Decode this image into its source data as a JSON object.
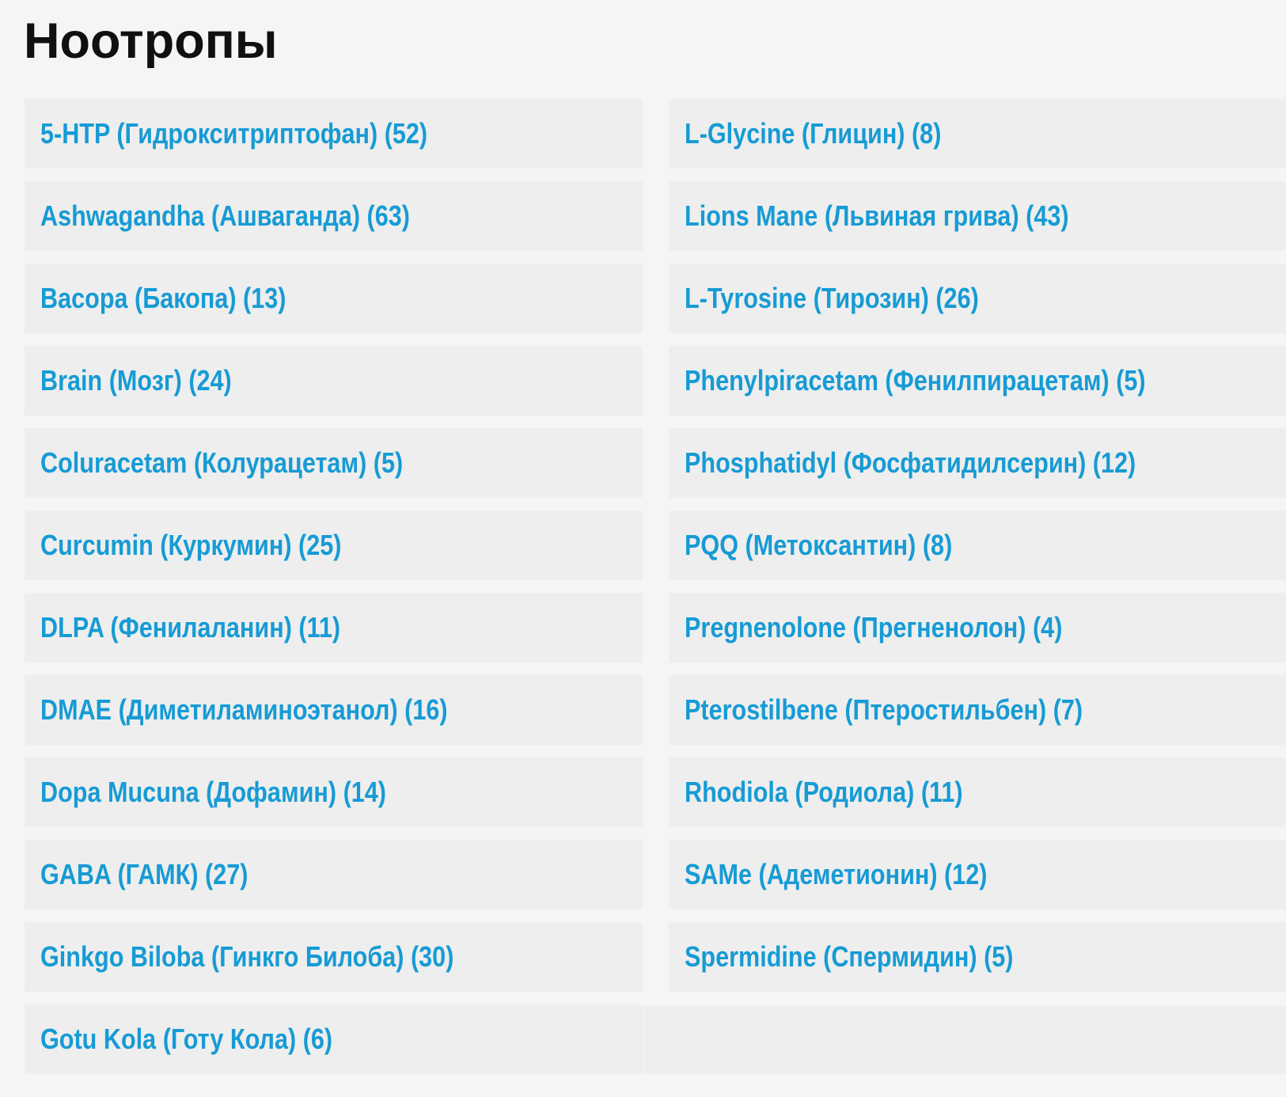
{
  "page": {
    "title": "Ноотропы"
  },
  "colors": {
    "page_bg": "#f5f5f6",
    "cell_bg": "#eeeeee",
    "link": "#169bd5",
    "title_text": "#101010"
  },
  "categories": {
    "left": [
      {
        "label": "5-HTP (Гидрокситриптофан) (52)",
        "count": 52
      },
      {
        "label": "Ashwagandha (Ашваганда) (63)",
        "count": 63
      },
      {
        "label": "Bacopa (Бакопа) (13)",
        "count": 13
      },
      {
        "label": "Brain (Мозг) (24)",
        "count": 24
      },
      {
        "label": "Coluracetam (Колурацетам) (5)",
        "count": 5
      },
      {
        "label": "Curcumin (Куркумин) (25)",
        "count": 25
      },
      {
        "label": "DLPA (Фенилаланин) (11)",
        "count": 11
      },
      {
        "label": "DMAE (Диметиламиноэтанол) (16)",
        "count": 16
      },
      {
        "label": "Dopa Mucuna (Дофамин) (14)",
        "count": 14
      },
      {
        "label": "GABA (ГАМК) (27)",
        "count": 27
      },
      {
        "label": "Ginkgo Biloba (Гинкго Билоба) (30)",
        "count": 30
      },
      {
        "label": "Gotu Kola (Готу Кола) (6)",
        "count": 6
      }
    ],
    "right": [
      {
        "label": "L-Glycine (Глицин) (8)",
        "count": 8
      },
      {
        "label": "Lions Mane (Львиная грива) (43)",
        "count": 43
      },
      {
        "label": "L-Tyrosine (Тирозин) (26)",
        "count": 26
      },
      {
        "label": "Phenylpiracetam (Фенилпирацетам) (5)",
        "count": 5
      },
      {
        "label": "Phosphatidyl (Фосфатидилсерин) (12)",
        "count": 12
      },
      {
        "label": "PQQ (Метоксантин) (8)",
        "count": 8
      },
      {
        "label": "Pregnenolone (Прегненолон) (4)",
        "count": 4
      },
      {
        "label": "Pterostilbene (Птеростильбен) (7)",
        "count": 7
      },
      {
        "label": "Rhodiola (Родиола) (11)",
        "count": 11
      },
      {
        "label": "SAMe (Адеметионин) (12)",
        "count": 12
      },
      {
        "label": "Spermidine (Спермидин) (5)",
        "count": 5
      }
    ]
  }
}
